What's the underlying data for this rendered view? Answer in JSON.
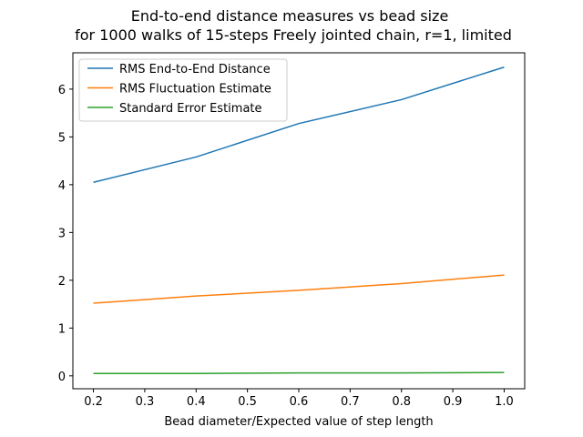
{
  "chart_data": {
    "type": "line",
    "title_lines": [
      "End-to-end distance measures vs bead size",
      "for 1000 walks of 15-steps Freely jointed chain, r=1, limited"
    ],
    "xlabel": "Bead diameter/Expected value of step length",
    "ylabel": "",
    "x": [
      0.2,
      0.4,
      0.6,
      0.8,
      1.0
    ],
    "xlim": [
      0.16,
      1.04
    ],
    "ylim": [
      -0.27,
      6.76
    ],
    "xticks": [
      "0.2",
      "0.3",
      "0.4",
      "0.5",
      "0.6",
      "0.7",
      "0.8",
      "0.9",
      "1.0"
    ],
    "yticks": [
      "0",
      "1",
      "2",
      "3",
      "4",
      "5",
      "6"
    ],
    "grid": false,
    "legend_position": "upper-left",
    "series": [
      {
        "name": "RMS End-to-End Distance",
        "color": "#1f77b4",
        "values": [
          4.05,
          4.58,
          5.28,
          5.78,
          6.46
        ]
      },
      {
        "name": "RMS Fluctuation Estimate",
        "color": "#ff7f0e",
        "values": [
          1.52,
          1.67,
          1.79,
          1.93,
          2.11
        ]
      },
      {
        "name": "Standard Error Estimate",
        "color": "#2ca02c",
        "values": [
          0.05,
          0.05,
          0.06,
          0.06,
          0.07
        ]
      }
    ]
  }
}
